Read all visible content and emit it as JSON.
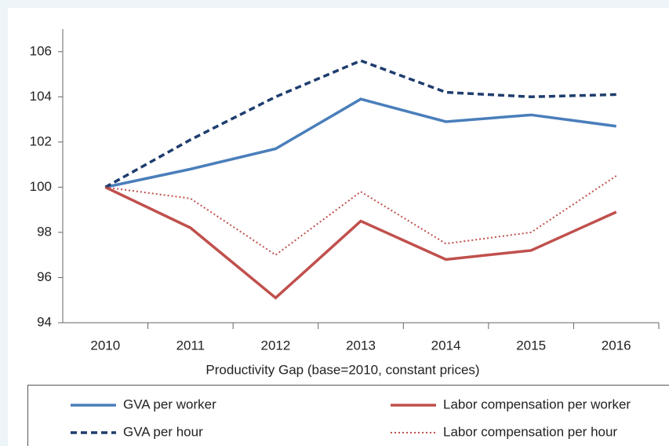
{
  "chart_data": {
    "type": "line",
    "x_label": "Productivity Gap (base=2010, constant prices)",
    "categories": [
      "2010",
      "2011",
      "2012",
      "2013",
      "2014",
      "2015",
      "2016"
    ],
    "series": [
      {
        "name": "GVA per worker",
        "color": "#4a7ebb",
        "dash": "solid",
        "values": [
          100,
          100.8,
          101.7,
          103.9,
          102.9,
          103.2,
          102.7
        ]
      },
      {
        "name": "Labor compensation per worker",
        "color": "#c0504d",
        "dash": "solid",
        "values": [
          100,
          98.2,
          95.1,
          98.5,
          96.8,
          97.2,
          98.9
        ]
      },
      {
        "name": "GVA per hour",
        "color": "#1f3d6e",
        "dash": "dashed",
        "values": [
          100,
          102.1,
          104.0,
          105.6,
          104.2,
          104.0,
          104.1
        ]
      },
      {
        "name": "Labor compensation per hour",
        "color": "#c0504d",
        "dash": "dotted",
        "values": [
          100,
          99.5,
          97.0,
          99.8,
          97.5,
          98.0,
          100.5
        ]
      }
    ],
    "ylim": [
      94,
      107
    ],
    "yticks": [
      94,
      96,
      98,
      100,
      102,
      104,
      106
    ],
    "grid": false
  }
}
